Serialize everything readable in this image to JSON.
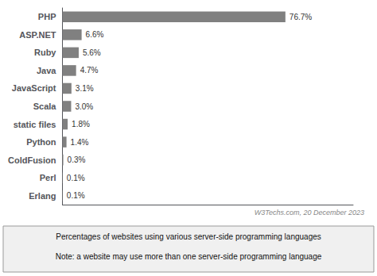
{
  "chart_data": {
    "type": "bar",
    "orientation": "horizontal",
    "categories": [
      "PHP",
      "ASP.NET",
      "Ruby",
      "Java",
      "JavaScript",
      "Scala",
      "static files",
      "Python",
      "ColdFusion",
      "Perl",
      "Erlang"
    ],
    "values": [
      76.7,
      6.6,
      5.6,
      4.7,
      3.1,
      3.0,
      1.8,
      1.4,
      0.3,
      0.1,
      0.1
    ],
    "value_labels": [
      "76.7%",
      "6.6%",
      "5.6%",
      "4.7%",
      "3.1%",
      "3.0%",
      "1.8%",
      "1.4%",
      "0.3%",
      "0.1%",
      "0.1%"
    ],
    "data_labels": true,
    "color": "#808080",
    "xlim": [
      0,
      100
    ],
    "tick_labels": "y",
    "grid": false,
    "annotations": [
      "W3Techs.com, 20 December 2023",
      "Percentages of websites using various server-side programming languages",
      "Note: a website may use more than one server-side programming language"
    ]
  }
}
